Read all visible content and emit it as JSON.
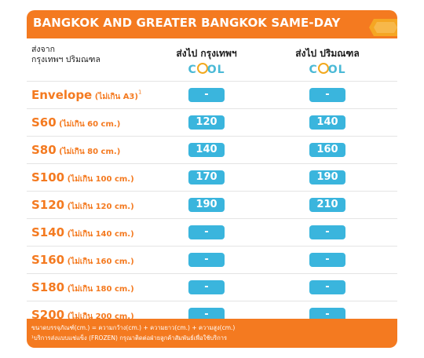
{
  "header": {
    "title": "BANGKOK AND GREATER BANGKOK  SAME-DAY",
    "origin_line1": "ส่งจาก",
    "origin_line2": "กรุงเทพฯ ปริมณฑล",
    "col1_dest": "ส่งไป กรุงเทพฯ",
    "col2_dest": "ส่งไป ปริมณฑล",
    "cool_c": "C",
    "cool_rest": "OL"
  },
  "rows": [
    {
      "size": "Envelope",
      "note": " (ไม่เกิน A3)",
      "sup": "1",
      "bkk": "-",
      "greater": "-"
    },
    {
      "size": "S60",
      "note": " (ไม่เกิน 60 cm.)",
      "sup": "",
      "bkk": "120",
      "greater": "140"
    },
    {
      "size": "S80",
      "note": " (ไม่เกิน 80 cm.)",
      "sup": "",
      "bkk": "140",
      "greater": "160"
    },
    {
      "size": "S100",
      "note": " (ไม่เกิน 100 cm.)",
      "sup": "",
      "bkk": "170",
      "greater": "190"
    },
    {
      "size": "S120",
      "note": " (ไม่เกิน 120 cm.)",
      "sup": "",
      "bkk": "190",
      "greater": "210"
    },
    {
      "size": "S140",
      "note": " (ไม่เกิน 140 cm.)",
      "sup": "",
      "bkk": "-",
      "greater": "-"
    },
    {
      "size": "S160",
      "note": " (ไม่เกิน 160 cm.)",
      "sup": "",
      "bkk": "-",
      "greater": "-"
    },
    {
      "size": "S180",
      "note": " (ไม่เกิน 180 cm.)",
      "sup": "",
      "bkk": "-",
      "greater": "-"
    },
    {
      "size": "S200",
      "note": " (ไม่เกิน 200 cm.)",
      "sup": "",
      "bkk": "-",
      "greater": "-"
    }
  ],
  "footer": {
    "line1": "ขนาดบรรจุภัณฑ์(cm.) = ความกว้าง(cm.) + ความยาว(cm.) + ความสูง(cm.)",
    "line2": "¹บริการส่งแบบแช่แข็ง (FROZEN) กรุณาติดต่อฝ่ายลูกค้าสัมพันธ์เพื่อใช้บริการ"
  },
  "colors": {
    "accent": "#f47a20",
    "pill": "#3ab5dd",
    "cool_text": "#4ab9d6",
    "cool_ring": "#f2a81d",
    "logo": "#f5a623"
  }
}
